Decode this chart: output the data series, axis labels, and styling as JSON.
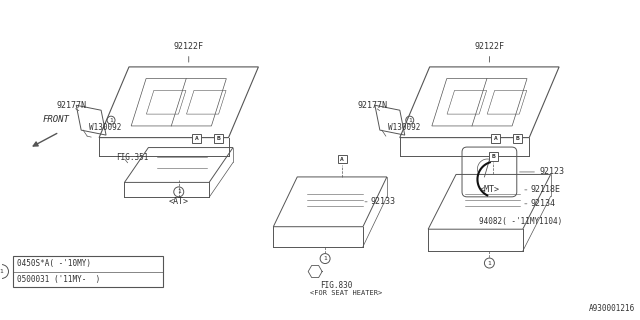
{
  "title": "",
  "background_color": "#ffffff",
  "diagram_id": "A930001216",
  "fig_size": [
    6.4,
    3.2
  ],
  "dpi": 100,
  "line_color": "#555555",
  "text_color": "#333333",
  "bg_color": "#ffffff",
  "legend": {
    "circle_label": "1",
    "line1": "0450S*A( -'10MY)",
    "line2": "0500031 ('11MY-  )"
  }
}
